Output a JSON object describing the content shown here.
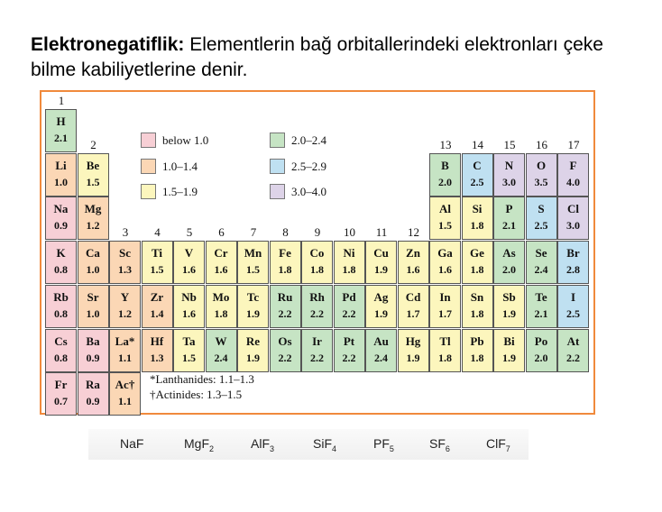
{
  "heading": {
    "bold": "Elektronegatiflik:",
    "text": " Elementlerin bağ orbitallerindeki elektronları çeke bilme kabiliyetlerine denir."
  },
  "groups": [
    "1",
    "2",
    "3",
    "4",
    "5",
    "6",
    "7",
    "8",
    "9",
    "10",
    "11",
    "12",
    "13",
    "14",
    "15",
    "16",
    "17"
  ],
  "colors": {
    "pink": "#f7cfd5",
    "peach": "#fbd7b5",
    "yellow": "#fcf6bd",
    "green": "#c6e4c4",
    "blue": "#bfe0f1",
    "purple": "#ddd3e8",
    "frame": "#f08a3c"
  },
  "legend": [
    {
      "label": "below 1.0",
      "color": "pink"
    },
    {
      "label": "1.0–1.4",
      "color": "peach"
    },
    {
      "label": "1.5–1.9",
      "color": "yellow"
    },
    {
      "label": "2.0–2.4",
      "color": "green"
    },
    {
      "label": "2.5–2.9",
      "color": "blue"
    },
    {
      "label": "3.0–4.0",
      "color": "purple"
    }
  ],
  "elements": [
    {
      "sym": "H",
      "en": "2.1",
      "row": 1,
      "col": 1,
      "color": "green"
    },
    {
      "sym": "Li",
      "en": "1.0",
      "row": 2,
      "col": 1,
      "color": "peach"
    },
    {
      "sym": "Be",
      "en": "1.5",
      "row": 2,
      "col": 2,
      "color": "yellow"
    },
    {
      "sym": "B",
      "en": "2.0",
      "row": 2,
      "col": 13,
      "color": "green"
    },
    {
      "sym": "C",
      "en": "2.5",
      "row": 2,
      "col": 14,
      "color": "blue"
    },
    {
      "sym": "N",
      "en": "3.0",
      "row": 2,
      "col": 15,
      "color": "purple"
    },
    {
      "sym": "O",
      "en": "3.5",
      "row": 2,
      "col": 16,
      "color": "purple"
    },
    {
      "sym": "F",
      "en": "4.0",
      "row": 2,
      "col": 17,
      "color": "purple"
    },
    {
      "sym": "Na",
      "en": "0.9",
      "row": 3,
      "col": 1,
      "color": "pink"
    },
    {
      "sym": "Mg",
      "en": "1.2",
      "row": 3,
      "col": 2,
      "color": "peach"
    },
    {
      "sym": "Al",
      "en": "1.5",
      "row": 3,
      "col": 13,
      "color": "yellow"
    },
    {
      "sym": "Si",
      "en": "1.8",
      "row": 3,
      "col": 14,
      "color": "yellow"
    },
    {
      "sym": "P",
      "en": "2.1",
      "row": 3,
      "col": 15,
      "color": "green"
    },
    {
      "sym": "S",
      "en": "2.5",
      "row": 3,
      "col": 16,
      "color": "blue"
    },
    {
      "sym": "Cl",
      "en": "3.0",
      "row": 3,
      "col": 17,
      "color": "purple"
    },
    {
      "sym": "K",
      "en": "0.8",
      "row": 4,
      "col": 1,
      "color": "pink"
    },
    {
      "sym": "Ca",
      "en": "1.0",
      "row": 4,
      "col": 2,
      "color": "peach"
    },
    {
      "sym": "Sc",
      "en": "1.3",
      "row": 4,
      "col": 3,
      "color": "peach"
    },
    {
      "sym": "Ti",
      "en": "1.5",
      "row": 4,
      "col": 4,
      "color": "yellow"
    },
    {
      "sym": "V",
      "en": "1.6",
      "row": 4,
      "col": 5,
      "color": "yellow"
    },
    {
      "sym": "Cr",
      "en": "1.6",
      "row": 4,
      "col": 6,
      "color": "yellow"
    },
    {
      "sym": "Mn",
      "en": "1.5",
      "row": 4,
      "col": 7,
      "color": "yellow"
    },
    {
      "sym": "Fe",
      "en": "1.8",
      "row": 4,
      "col": 8,
      "color": "yellow"
    },
    {
      "sym": "Co",
      "en": "1.8",
      "row": 4,
      "col": 9,
      "color": "yellow"
    },
    {
      "sym": "Ni",
      "en": "1.8",
      "row": 4,
      "col": 10,
      "color": "yellow"
    },
    {
      "sym": "Cu",
      "en": "1.9",
      "row": 4,
      "col": 11,
      "color": "yellow"
    },
    {
      "sym": "Zn",
      "en": "1.6",
      "row": 4,
      "col": 12,
      "color": "yellow"
    },
    {
      "sym": "Ga",
      "en": "1.6",
      "row": 4,
      "col": 13,
      "color": "yellow"
    },
    {
      "sym": "Ge",
      "en": "1.8",
      "row": 4,
      "col": 14,
      "color": "yellow"
    },
    {
      "sym": "As",
      "en": "2.0",
      "row": 4,
      "col": 15,
      "color": "green"
    },
    {
      "sym": "Se",
      "en": "2.4",
      "row": 4,
      "col": 16,
      "color": "green"
    },
    {
      "sym": "Br",
      "en": "2.8",
      "row": 4,
      "col": 17,
      "color": "blue"
    },
    {
      "sym": "Rb",
      "en": "0.8",
      "row": 5,
      "col": 1,
      "color": "pink"
    },
    {
      "sym": "Sr",
      "en": "1.0",
      "row": 5,
      "col": 2,
      "color": "peach"
    },
    {
      "sym": "Y",
      "en": "1.2",
      "row": 5,
      "col": 3,
      "color": "peach"
    },
    {
      "sym": "Zr",
      "en": "1.4",
      "row": 5,
      "col": 4,
      "color": "peach"
    },
    {
      "sym": "Nb",
      "en": "1.6",
      "row": 5,
      "col": 5,
      "color": "yellow"
    },
    {
      "sym": "Mo",
      "en": "1.8",
      "row": 5,
      "col": 6,
      "color": "yellow"
    },
    {
      "sym": "Tc",
      "en": "1.9",
      "row": 5,
      "col": 7,
      "color": "yellow"
    },
    {
      "sym": "Ru",
      "en": "2.2",
      "row": 5,
      "col": 8,
      "color": "green"
    },
    {
      "sym": "Rh",
      "en": "2.2",
      "row": 5,
      "col": 9,
      "color": "green"
    },
    {
      "sym": "Pd",
      "en": "2.2",
      "row": 5,
      "col": 10,
      "color": "green"
    },
    {
      "sym": "Ag",
      "en": "1.9",
      "row": 5,
      "col": 11,
      "color": "yellow"
    },
    {
      "sym": "Cd",
      "en": "1.7",
      "row": 5,
      "col": 12,
      "color": "yellow"
    },
    {
      "sym": "In",
      "en": "1.7",
      "row": 5,
      "col": 13,
      "color": "yellow"
    },
    {
      "sym": "Sn",
      "en": "1.8",
      "row": 5,
      "col": 14,
      "color": "yellow"
    },
    {
      "sym": "Sb",
      "en": "1.9",
      "row": 5,
      "col": 15,
      "color": "yellow"
    },
    {
      "sym": "Te",
      "en": "2.1",
      "row": 5,
      "col": 16,
      "color": "green"
    },
    {
      "sym": "I",
      "en": "2.5",
      "row": 5,
      "col": 17,
      "color": "blue"
    },
    {
      "sym": "Cs",
      "en": "0.8",
      "row": 6,
      "col": 1,
      "color": "pink"
    },
    {
      "sym": "Ba",
      "en": "0.9",
      "row": 6,
      "col": 2,
      "color": "pink"
    },
    {
      "sym": "La*",
      "en": "1.1",
      "row": 6,
      "col": 3,
      "color": "peach"
    },
    {
      "sym": "Hf",
      "en": "1.3",
      "row": 6,
      "col": 4,
      "color": "peach"
    },
    {
      "sym": "Ta",
      "en": "1.5",
      "row": 6,
      "col": 5,
      "color": "yellow"
    },
    {
      "sym": "W",
      "en": "2.4",
      "row": 6,
      "col": 6,
      "color": "green"
    },
    {
      "sym": "Re",
      "en": "1.9",
      "row": 6,
      "col": 7,
      "color": "yellow"
    },
    {
      "sym": "Os",
      "en": "2.2",
      "row": 6,
      "col": 8,
      "color": "green"
    },
    {
      "sym": "Ir",
      "en": "2.2",
      "row": 6,
      "col": 9,
      "color": "green"
    },
    {
      "sym": "Pt",
      "en": "2.2",
      "row": 6,
      "col": 10,
      "color": "green"
    },
    {
      "sym": "Au",
      "en": "2.4",
      "row": 6,
      "col": 11,
      "color": "green"
    },
    {
      "sym": "Hg",
      "en": "1.9",
      "row": 6,
      "col": 12,
      "color": "yellow"
    },
    {
      "sym": "Tl",
      "en": "1.8",
      "row": 6,
      "col": 13,
      "color": "yellow"
    },
    {
      "sym": "Pb",
      "en": "1.8",
      "row": 6,
      "col": 14,
      "color": "yellow"
    },
    {
      "sym": "Bi",
      "en": "1.9",
      "row": 6,
      "col": 15,
      "color": "yellow"
    },
    {
      "sym": "Po",
      "en": "2.0",
      "row": 6,
      "col": 16,
      "color": "green"
    },
    {
      "sym": "At",
      "en": "2.2",
      "row": 6,
      "col": 17,
      "color": "green"
    },
    {
      "sym": "Fr",
      "en": "0.7",
      "row": 7,
      "col": 1,
      "color": "pink"
    },
    {
      "sym": "Ra",
      "en": "0.9",
      "row": 7,
      "col": 2,
      "color": "pink"
    },
    {
      "sym": "Ac†",
      "en": "1.1",
      "row": 7,
      "col": 3,
      "color": "peach"
    }
  ],
  "notes": {
    "lanthanides": "*Lanthanides: 1.1–1.3",
    "actinides": "†Actinides: 1.3–1.5"
  },
  "formulas": [
    {
      "base": "NaF",
      "sub": ""
    },
    {
      "base": "MgF",
      "sub": "2"
    },
    {
      "base": "AlF",
      "sub": "3"
    },
    {
      "base": "SiF",
      "sub": "4"
    },
    {
      "base": "PF",
      "sub": "5"
    },
    {
      "base": "SF",
      "sub": "6"
    },
    {
      "base": "ClF",
      "sub": "7"
    }
  ]
}
